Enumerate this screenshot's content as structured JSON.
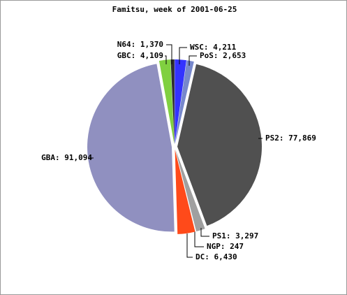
{
  "chart_data": {
    "type": "pie",
    "title": "Famitsu, week of 2001-06-25",
    "values": [
      4211,
      2653,
      77869,
      3297,
      247,
      6430,
      91094,
      4109,
      1370
    ],
    "value_labels": [
      "WSC: 4,211",
      "PoS: 2,653",
      "PS2: 77,869",
      "PS1: 3,297",
      "NGP: 247",
      "DC: 6,430",
      "GBA: 91,094",
      "GBC: 4,109",
      "N64: 1,370"
    ],
    "colors": [
      "#3333ff",
      "#7788cc",
      "#505050",
      "#a0a0a0",
      "#ffffff",
      "#ff4a1a",
      "#9090c0",
      "#80d040",
      "#303030"
    ]
  }
}
